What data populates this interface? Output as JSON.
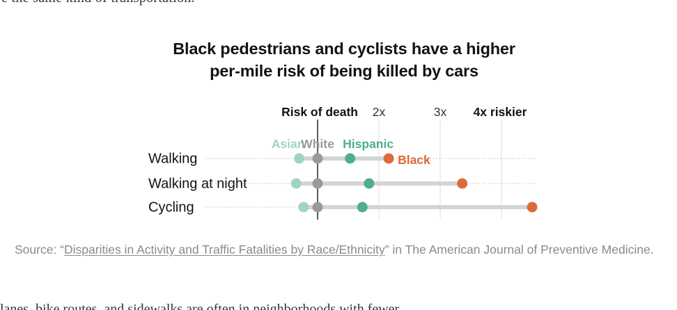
{
  "chart_data": {
    "type": "dot-range",
    "title_line1": "Black pedestrians and cyclists have a higher",
    "title_line2": "per-mile risk of being killed by cars",
    "baseline_label": "Risk of death",
    "x_ticks": [
      {
        "value": 2,
        "label": "2x"
      },
      {
        "value": 3,
        "label": "3x"
      },
      {
        "value": 4,
        "label": "4x riskier"
      }
    ],
    "xlim": [
      0.5,
      4.6
    ],
    "baseline_value": 1,
    "groups": [
      {
        "name": "Asian",
        "color": "#9fd4c2"
      },
      {
        "name": "White",
        "color": "#9a9a9a"
      },
      {
        "name": "Hispanic",
        "color": "#4fae8f"
      },
      {
        "name": "Black",
        "color": "#dc6a3a"
      }
    ],
    "categories": [
      "Walking",
      "Walking at night",
      "Cycling"
    ],
    "series": [
      {
        "name": "Asian",
        "values": [
          0.7,
          0.65,
          0.77
        ]
      },
      {
        "name": "White",
        "values": [
          1.0,
          1.0,
          1.0
        ]
      },
      {
        "name": "Hispanic",
        "values": [
          1.53,
          1.84,
          1.73
        ]
      },
      {
        "name": "Black",
        "values": [
          2.16,
          3.36,
          4.5
        ]
      }
    ]
  },
  "source": {
    "prefix": "Source: “",
    "link_text": "Disparities in Activity and Traffic Fatalities by Race/Ethnicity",
    "suffix": "” in The American Journal of Preventive Medicine."
  },
  "top_fragment": "e the same kind of transportation.",
  "bottom_fragment": "lanes, bike routes, and sidewalks are often in neighborhoods with fewer"
}
